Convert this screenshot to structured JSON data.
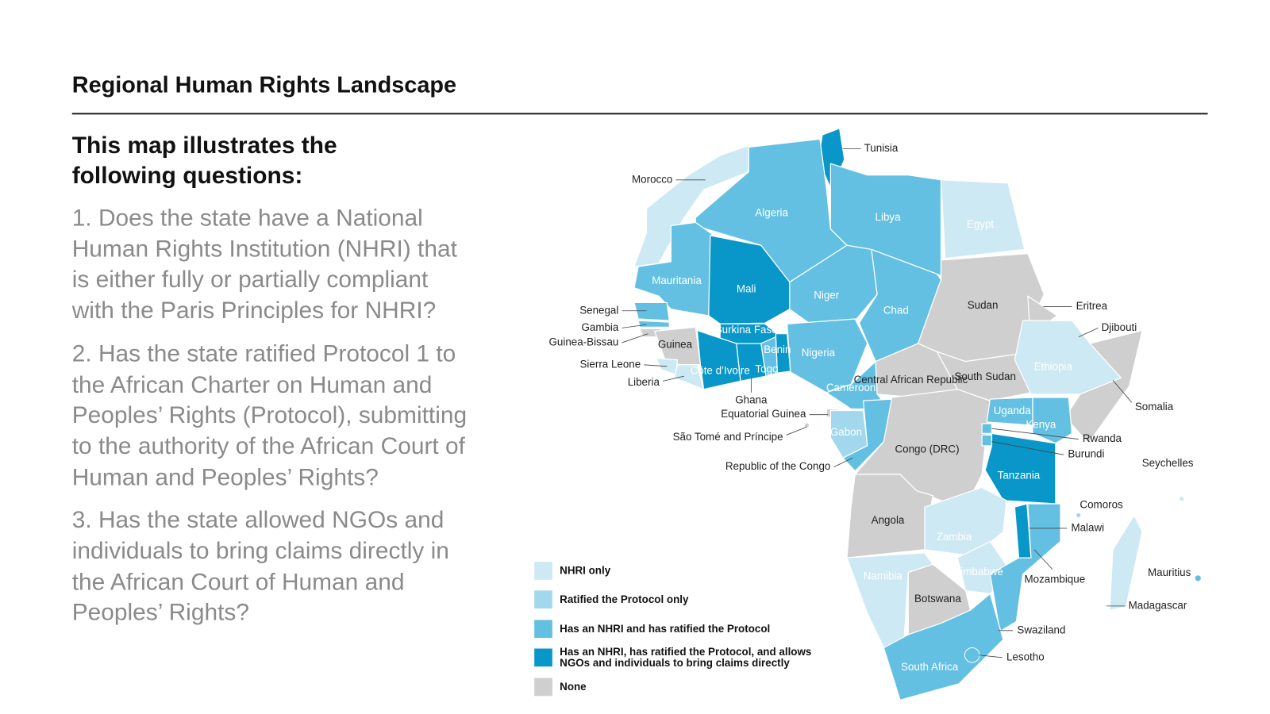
{
  "header": {
    "title": "Regional Human Rights Landscape"
  },
  "intro": {
    "heading": "This map illustrates the following questions:",
    "questions": [
      "1. Does the state have a National Human Rights Institution (NHRI) that is either fully or partially compliant with the Paris Principles for NHRI?",
      "2. Has the state ratified Protocol 1 to the African Charter on Human and Peoples’ Rights (Protocol), submitting to the authority of the African Court of Human and Peoples’ Rights?",
      "3. Has the state allowed NGOs and individuals to bring claims directly in the African Court of Human and Peoples’ Rights?"
    ]
  },
  "legend": [
    {
      "label": "NHRI only",
      "color": "#cde9f4"
    },
    {
      "label": "Ratified the Protocol only",
      "color": "#a2d8ee"
    },
    {
      "label": "Has an NHRI and has ratified the Protocol",
      "color": "#64c0e2"
    },
    {
      "label": "Has an NHRI, has ratified the Protocol, and allows NGOs and individuals to bring claims directly",
      "color": "#0897c8"
    },
    {
      "label": "None",
      "color": "#cfcfcf"
    }
  ],
  "countries": [
    {
      "name": "Tunisia",
      "category": 3
    },
    {
      "name": "Morocco",
      "category": 0
    },
    {
      "name": "Algeria",
      "category": 2
    },
    {
      "name": "Libya",
      "category": 2
    },
    {
      "name": "Egypt",
      "category": 0
    },
    {
      "name": "Mauritania",
      "category": 2
    },
    {
      "name": "Mali",
      "category": 3
    },
    {
      "name": "Niger",
      "category": 2
    },
    {
      "name": "Chad",
      "category": 2
    },
    {
      "name": "Sudan",
      "category": 4
    },
    {
      "name": "Eritrea",
      "category": 4
    },
    {
      "name": "Djibouti",
      "category": 4
    },
    {
      "name": "Senegal",
      "category": 2
    },
    {
      "name": "Gambia",
      "category": 2
    },
    {
      "name": "Guinea-Bissau",
      "category": 4
    },
    {
      "name": "Guinea",
      "category": 4
    },
    {
      "name": "Sierra Leone",
      "category": 0
    },
    {
      "name": "Liberia",
      "category": 0
    },
    {
      "name": "Burkina Faso",
      "category": 3
    },
    {
      "name": "Benin",
      "category": 3
    },
    {
      "name": "Côte d’Ivoire",
      "category": 3
    },
    {
      "name": "Togo",
      "category": 2
    },
    {
      "name": "Ghana",
      "category": 3
    },
    {
      "name": "Nigeria",
      "category": 2
    },
    {
      "name": "Cameroon",
      "category": 2
    },
    {
      "name": "Central African Republic",
      "category": 4
    },
    {
      "name": "South Sudan",
      "category": 4
    },
    {
      "name": "Ethiopia",
      "category": 0
    },
    {
      "name": "Somalia",
      "category": 4
    },
    {
      "name": "Equatorial Guinea",
      "category": 4
    },
    {
      "name": "São Tomé and Príncipe",
      "category": 4
    },
    {
      "name": "Gabon",
      "category": 1
    },
    {
      "name": "Republic of the Congo",
      "category": 2
    },
    {
      "name": "Congo (DRC)",
      "category": 4
    },
    {
      "name": "Uganda",
      "category": 2
    },
    {
      "name": "Kenya",
      "category": 2
    },
    {
      "name": "Rwanda",
      "category": 2
    },
    {
      "name": "Burundi",
      "category": 2
    },
    {
      "name": "Tanzania",
      "category": 3
    },
    {
      "name": "Seychelles",
      "category": 0
    },
    {
      "name": "Comoros",
      "category": 1
    },
    {
      "name": "Angola",
      "category": 4
    },
    {
      "name": "Zambia",
      "category": 0
    },
    {
      "name": "Malawi",
      "category": 3
    },
    {
      "name": "Namibia",
      "category": 0
    },
    {
      "name": "Zimbabwe",
      "category": 0
    },
    {
      "name": "Mozambique",
      "category": 2
    },
    {
      "name": "Mauritius",
      "category": 2
    },
    {
      "name": "Madagascar",
      "category": 0
    },
    {
      "name": "Botswana",
      "category": 4
    },
    {
      "name": "Swaziland",
      "category": 4
    },
    {
      "name": "South Africa",
      "category": 2
    },
    {
      "name": "Lesotho",
      "category": 2
    }
  ]
}
